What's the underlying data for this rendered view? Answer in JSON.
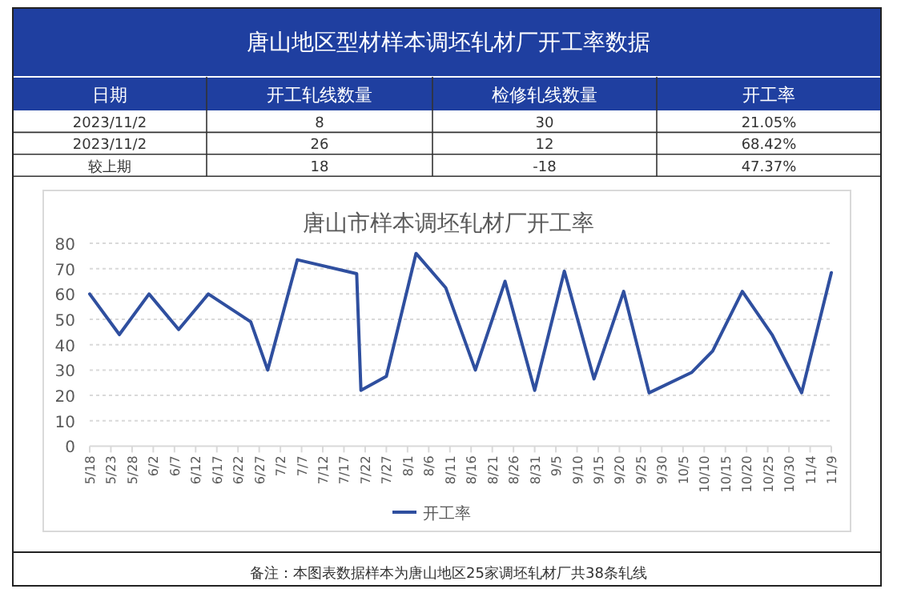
{
  "chart_data": [
    {
      "type": "other",
      "title": "唐山地区型材样本调坯轧材厂开工率数据",
      "categories": [
        "日期",
        "开工轧线数量",
        "检修轧线数量",
        "开工率"
      ],
      "y_categories": [
        "2023/11/2",
        "2023/11/2",
        "较上期"
      ],
      "cell_labels": [
        [
          "8",
          "30",
          "21.05%"
        ],
        [
          "26",
          "12",
          "68.42%"
        ],
        [
          "18",
          "-18",
          "47.37%"
        ]
      ]
    },
    {
      "type": "line",
      "title": "唐山市样本调坯轧材厂开工率",
      "x": [
        "--05-18",
        "--05-25",
        "--06-01",
        "--06-08",
        "--06-15",
        "--06-25",
        "--06-29",
        "--07-06",
        "--07-20",
        "--07-21",
        "--07-27",
        "--08-03",
        "--08-10",
        "--08-17",
        "--08-24",
        "--08-31",
        "--09-07",
        "--09-14",
        "--09-21",
        "--09-27",
        "--10-07",
        "--10-12",
        "--10-19",
        "--10-26",
        "--11-02",
        "--11-09"
      ],
      "series": [
        {
          "name": "开工率",
          "color": "#2f4f9f",
          "values": [
            60,
            44,
            60,
            46,
            60,
            49,
            30,
            73.5,
            68,
            22,
            27.5,
            76,
            62.5,
            30,
            65,
            22,
            69,
            26.5,
            61,
            21,
            29,
            37.5,
            61,
            44,
            21.05,
            68.42
          ]
        }
      ],
      "xlim": [
        "--05-18",
        "--11-09"
      ],
      "xticks": [
        {
          "value": "--05-18",
          "label": "5/18"
        },
        {
          "value": "--05-23",
          "label": "5/23"
        },
        {
          "value": "--05-28",
          "label": "5/28"
        },
        {
          "value": "--06-02",
          "label": "6/2"
        },
        {
          "value": "--06-07",
          "label": "6/7"
        },
        {
          "value": "--06-12",
          "label": "6/12"
        },
        {
          "value": "--06-17",
          "label": "6/17"
        },
        {
          "value": "--06-22",
          "label": "6/22"
        },
        {
          "value": "--06-27",
          "label": "6/27"
        },
        {
          "value": "--07-02",
          "label": "7/2"
        },
        {
          "value": "--07-07",
          "label": "7/7"
        },
        {
          "value": "--07-12",
          "label": "7/12"
        },
        {
          "value": "--07-17",
          "label": "7/17"
        },
        {
          "value": "--07-22",
          "label": "7/22"
        },
        {
          "value": "--07-27",
          "label": "7/27"
        },
        {
          "value": "--08-01",
          "label": "8/1"
        },
        {
          "value": "--08-06",
          "label": "8/6"
        },
        {
          "value": "--08-11",
          "label": "8/11"
        },
        {
          "value": "--08-16",
          "label": "8/16"
        },
        {
          "value": "--08-21",
          "label": "8/21"
        },
        {
          "value": "--08-26",
          "label": "8/26"
        },
        {
          "value": "--08-31",
          "label": "8/31"
        },
        {
          "value": "--09-05",
          "label": "9/5"
        },
        {
          "value": "--09-10",
          "label": "9/10"
        },
        {
          "value": "--09-15",
          "label": "9/15"
        },
        {
          "value": "--09-20",
          "label": "9/20"
        },
        {
          "value": "--09-25",
          "label": "9/25"
        },
        {
          "value": "--09-30",
          "label": "9/30"
        },
        {
          "value": "--10-05",
          "label": "10/5"
        },
        {
          "value": "--10-10",
          "label": "10/10"
        },
        {
          "value": "--10-15",
          "label": "10/15"
        },
        {
          "value": "--10-20",
          "label": "10/20"
        },
        {
          "value": "--10-25",
          "label": "10/25"
        },
        {
          "value": "--10-30",
          "label": "10/30"
        },
        {
          "value": "--11-04",
          "label": "11/4"
        },
        {
          "value": "--11-09",
          "label": "11/9"
        }
      ],
      "ylim": [
        0,
        80
      ],
      "yticks": [
        0,
        10,
        20,
        30,
        40,
        50,
        60,
        70,
        80
      ],
      "grid": "y",
      "legend": "bottom",
      "marker": "none",
      "line_style": "solid",
      "annotations": [
        "备注：本图表数据样本为唐山地区25家调坯轧材厂共38条轧线"
      ]
    }
  ]
}
